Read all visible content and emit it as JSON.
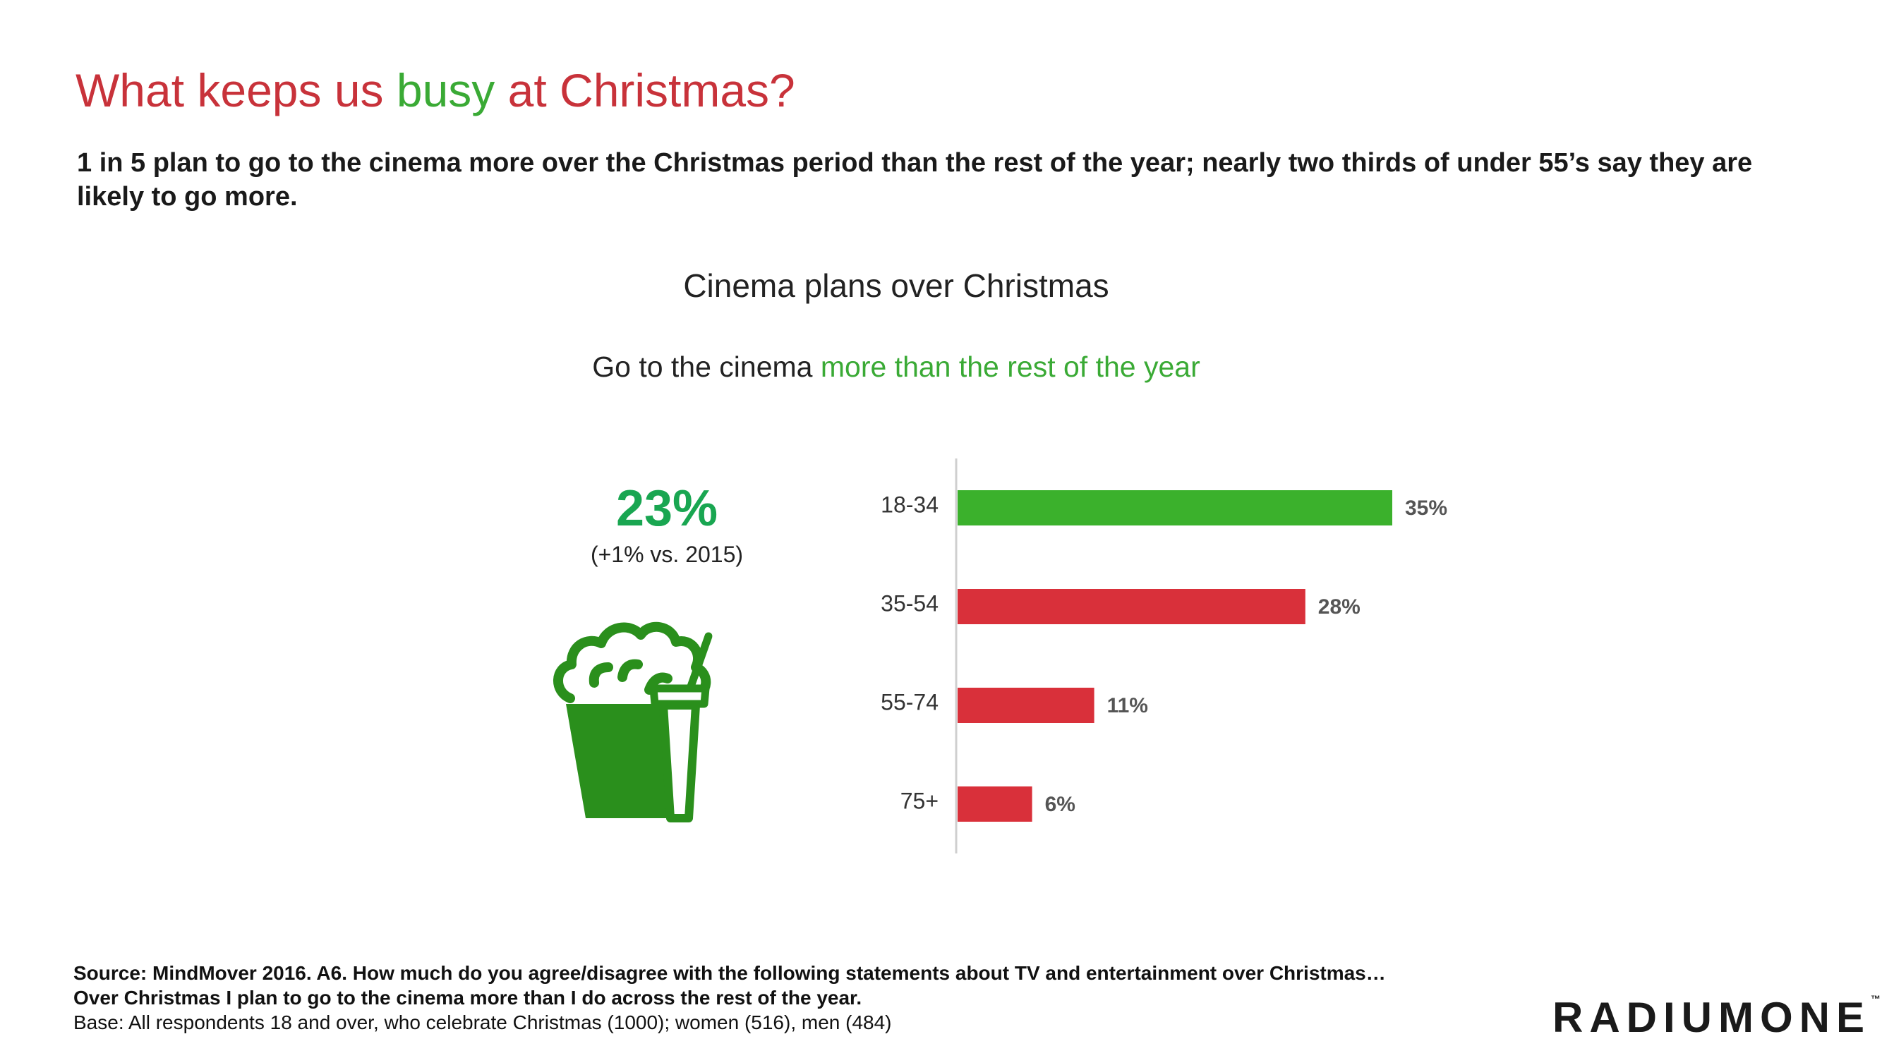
{
  "title": {
    "part1": "What keeps us ",
    "part2": "busy",
    "part3": " at Christmas?"
  },
  "subtitle": "1 in 5 plan to go to the cinema more over the Christmas period than the rest of the year; nearly two thirds of under 55’s say they are likely to go more.",
  "stat": {
    "value": "23%",
    "note": "(+1% vs. 2015)"
  },
  "icon": "popcorn-and-drink-icon",
  "colors": {
    "title_red": "#c8323a",
    "accent_green": "#3aaa35",
    "stat_green": "#19a651",
    "bar_green": "#3bb12c",
    "bar_red": "#d9303a",
    "icon_green": "#2a8f1c"
  },
  "chart_data": {
    "type": "bar",
    "orientation": "horizontal",
    "title": "Cinema plans over Christmas",
    "subtitle_part1": "Go to the cinema ",
    "subtitle_part2": "more than the rest of the year",
    "categories": [
      "18-34",
      "35-54",
      "55-74",
      "75+"
    ],
    "values": [
      35,
      28,
      11,
      6
    ],
    "labels": [
      "35%",
      "28%",
      "11%",
      "6%"
    ],
    "bar_colors": [
      "#3bb12c",
      "#d9303a",
      "#d9303a",
      "#d9303a"
    ],
    "xlim": [
      0,
      70
    ],
    "grid": false,
    "legend": "none"
  },
  "footer": {
    "source": "Source: MindMover 2016. A6. How much do you agree/disagree with the following statements about TV and entertainment over Christmas…Over Christmas I plan to go to the cinema more than I do across the rest of the year.",
    "base": "Base: All respondents 18 and over, who celebrate Christmas (1000);  women (516), men (484)"
  },
  "logo": {
    "text": "RADIUMONE",
    "tm": "™"
  }
}
